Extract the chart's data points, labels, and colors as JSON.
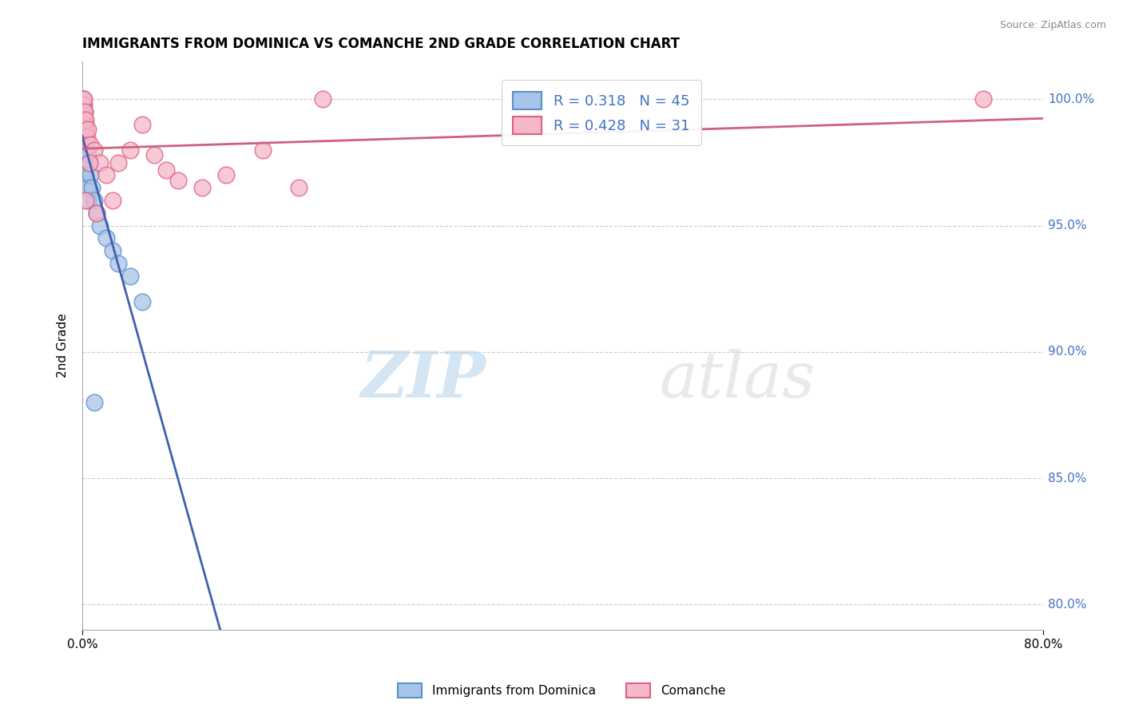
{
  "title": "IMMIGRANTS FROM DOMINICA VS COMANCHE 2ND GRADE CORRELATION CHART",
  "source_text": "Source: ZipAtlas.com",
  "ylabel": "2nd Grade",
  "xlim": [
    0.0,
    80.0
  ],
  "ylim": [
    79.0,
    101.5
  ],
  "ytick_values": [
    80.0,
    85.0,
    90.0,
    95.0,
    100.0
  ],
  "xtick_values": [
    0.0,
    80.0
  ],
  "legend_series1_label": "Immigrants from Dominica",
  "legend_series2_label": "Comanche",
  "R1": 0.318,
  "N1": 45,
  "R2": 0.428,
  "N2": 31,
  "color1_fill": "#a8c4e8",
  "color1_edge": "#5b8fc9",
  "color2_fill": "#f5b8ca",
  "color2_edge": "#e06080",
  "color1_line": "#4060b0",
  "color2_line": "#d06080",
  "watermark_zip": "ZIP",
  "watermark_atlas": "atlas",
  "blue_x": [
    0.05,
    0.05,
    0.05,
    0.05,
    0.05,
    0.08,
    0.08,
    0.08,
    0.1,
    0.1,
    0.1,
    0.1,
    0.12,
    0.12,
    0.15,
    0.15,
    0.15,
    0.18,
    0.18,
    0.2,
    0.2,
    0.22,
    0.22,
    0.25,
    0.25,
    0.28,
    0.3,
    0.3,
    0.35,
    0.4,
    0.4,
    0.5,
    0.5,
    0.6,
    0.7,
    0.8,
    1.0,
    1.2,
    1.5,
    2.0,
    2.5,
    3.0,
    4.0,
    5.0,
    1.0
  ],
  "blue_y": [
    100.0,
    99.5,
    99.0,
    98.5,
    98.0,
    99.8,
    99.3,
    98.8,
    100.0,
    99.5,
    99.0,
    97.5,
    99.2,
    98.5,
    99.8,
    99.0,
    98.0,
    99.5,
    97.8,
    99.2,
    98.5,
    99.0,
    97.5,
    98.8,
    97.2,
    98.5,
    99.0,
    97.0,
    98.2,
    98.0,
    96.5,
    97.8,
    96.0,
    97.5,
    97.0,
    96.5,
    96.0,
    95.5,
    95.0,
    94.5,
    94.0,
    93.5,
    93.0,
    92.0,
    88.0
  ],
  "pink_x": [
    0.05,
    0.08,
    0.1,
    0.12,
    0.15,
    0.18,
    0.2,
    0.25,
    0.3,
    0.4,
    0.5,
    0.7,
    1.0,
    1.5,
    2.0,
    3.0,
    4.0,
    5.0,
    6.0,
    7.0,
    8.0,
    10.0,
    12.0,
    15.0,
    18.0,
    0.3,
    0.6,
    1.2,
    2.5,
    20.0,
    75.0
  ],
  "pink_y": [
    100.0,
    99.5,
    99.8,
    99.2,
    100.0,
    99.0,
    99.5,
    98.8,
    99.2,
    98.5,
    98.8,
    98.2,
    98.0,
    97.5,
    97.0,
    97.5,
    98.0,
    99.0,
    97.8,
    97.2,
    96.8,
    96.5,
    97.0,
    98.0,
    96.5,
    96.0,
    97.5,
    95.5,
    96.0,
    100.0,
    100.0
  ]
}
